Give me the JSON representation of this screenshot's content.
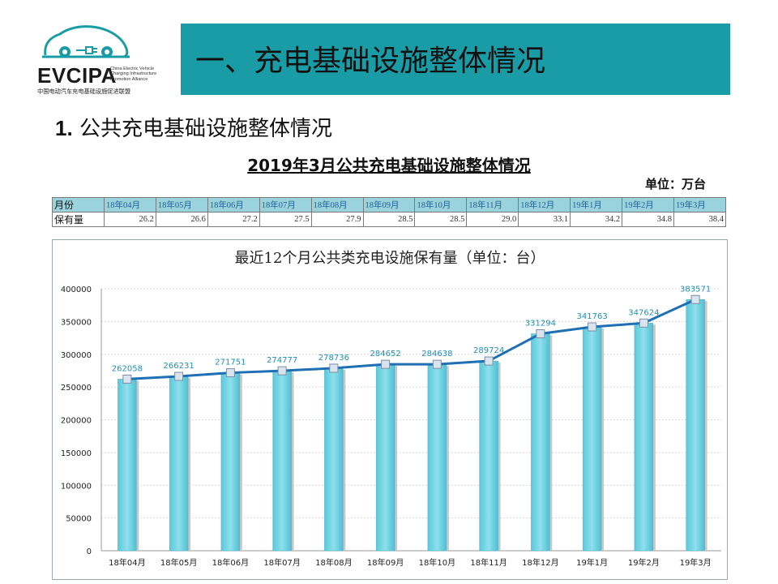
{
  "logo": {
    "name": "EVCIPA",
    "en_lines": [
      "China Electric Vehicle",
      "Charging Infrastructure",
      "Promotion Alliance"
    ],
    "cn": "中国电动汽车充电基础设施促进联盟"
  },
  "banner": {
    "title": "一、充电基础设施整体情况"
  },
  "section": {
    "number": "1.",
    "title": "公共充电基础设施整体情况"
  },
  "table": {
    "title": "2019年3月公共充电基础设施整体情况",
    "unit": "单位：万台",
    "header_label": "月份",
    "row_label": "保有量",
    "months": [
      "18年04月",
      "18年05月",
      "18年06月",
      "18年07月",
      "18年08月",
      "18年09月",
      "18年10月",
      "18年11月",
      "18年12月",
      "19年1月",
      "19年2月",
      "19年3月"
    ],
    "values": [
      "26.2",
      "26.6",
      "27.2",
      "27.5",
      "27.9",
      "28.5",
      "28.5",
      "29.0",
      "33.1",
      "34.2",
      "34.8",
      "38.4"
    ]
  },
  "colors": {
    "banner": "#1a9ca6",
    "bar": "#6fd3e3",
    "line": "#1f6fb5",
    "data_label": "#1f8fb3"
  },
  "chart_data": {
    "type": "bar",
    "title": "最近12个月公共类充电设施保有量（单位：台）",
    "categories": [
      "18年04月",
      "18年05月",
      "18年06月",
      "18年07月",
      "18年08月",
      "18年09月",
      "18年10月",
      "18年11月",
      "18年12月",
      "19年1月",
      "19年2月",
      "19年3月"
    ],
    "values": [
      262058,
      266231,
      271751,
      274777,
      278736,
      284652,
      284638,
      289724,
      331294,
      341763,
      347624,
      383571
    ],
    "line_overlay": true,
    "ylim": [
      0,
      400000
    ],
    "yticks": [
      0,
      50000,
      100000,
      150000,
      200000,
      250000,
      300000,
      350000,
      400000
    ],
    "grid": true,
    "legend": "none"
  }
}
